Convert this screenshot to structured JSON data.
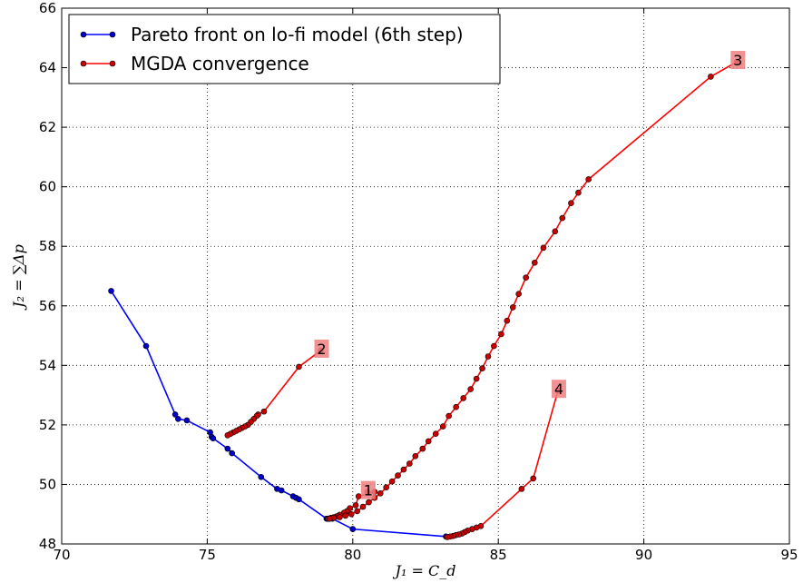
{
  "chart_data": {
    "type": "line",
    "xlabel": "J₁ = C_d",
    "ylabel": "J₂ = ∑Δp",
    "xlim": [
      70,
      95
    ],
    "ylim": [
      48,
      66
    ],
    "xticks": [
      70,
      75,
      80,
      85,
      90,
      95
    ],
    "yticks": [
      48,
      50,
      52,
      54,
      56,
      58,
      60,
      62,
      64,
      66
    ],
    "grid": true,
    "legend_position": "top-left",
    "series": [
      {
        "name": "Pareto front on lo-fi model (6th step)",
        "color": "#0000ff",
        "marker_color": "#0000cc",
        "x": [
          71.7,
          72.9,
          73.9,
          74.0,
          74.3,
          75.1,
          75.15,
          75.2,
          75.7,
          75.85,
          76.85,
          77.4,
          77.55,
          77.95,
          78.05,
          78.15,
          79.1,
          79.15,
          79.2,
          79.3,
          80.0,
          83.2
        ],
        "y": [
          56.5,
          54.65,
          52.35,
          52.2,
          52.15,
          51.75,
          51.6,
          51.55,
          51.2,
          51.05,
          50.25,
          49.85,
          49.8,
          49.6,
          49.55,
          49.5,
          48.85,
          48.85,
          48.85,
          48.85,
          48.5,
          48.25
        ]
      },
      {
        "name": "MGDA convergence",
        "color": "#ff0000",
        "marker_color": "#cc0000",
        "segments": [
          {
            "label": "1",
            "x": [
              80.5,
              80.75,
              80.2,
              80.1,
              79.9,
              79.8,
              79.7,
              79.55,
              79.45,
              79.35,
              79.25,
              79.15
            ],
            "y": [
              49.75,
              49.75,
              49.6,
              49.3,
              49.2,
              49.1,
              49.05,
              48.98,
              48.93,
              48.9,
              48.88,
              48.85
            ]
          },
          {
            "label": "2",
            "x": [
              78.9,
              78.15,
              76.95,
              76.75,
              76.7,
              76.6,
              76.5,
              76.4,
              76.3,
              76.2,
              76.1,
              76.0,
              75.9,
              75.8,
              75.7
            ],
            "y": [
              54.5,
              53.95,
              52.45,
              52.35,
              52.3,
              52.2,
              52.1,
              52.0,
              51.95,
              51.9,
              51.85,
              51.8,
              51.75,
              51.7,
              51.65
            ]
          },
          {
            "label": "3",
            "x": [
              93.2,
              92.3,
              88.1,
              87.75,
              87.5,
              87.2,
              86.95,
              86.55,
              86.25,
              85.95,
              85.7,
              85.5,
              85.3,
              85.1,
              84.85,
              84.65,
              84.45,
              84.25,
              84.05,
              83.8,
              83.55,
              83.3,
              83.1,
              82.85,
              82.6,
              82.4,
              82.15,
              81.95,
              81.75,
              81.55,
              81.35,
              81.15,
              80.95,
              80.75,
              80.55,
              80.35,
              80.15,
              79.95,
              79.75,
              79.55,
              79.35,
              79.2
            ],
            "y": [
              64.2,
              63.7,
              60.25,
              59.8,
              59.45,
              58.95,
              58.5,
              57.95,
              57.45,
              56.95,
              56.4,
              55.95,
              55.5,
              55.05,
              54.65,
              54.3,
              53.9,
              53.55,
              53.2,
              52.9,
              52.6,
              52.3,
              51.95,
              51.7,
              51.45,
              51.2,
              50.95,
              50.7,
              50.5,
              50.3,
              50.1,
              49.9,
              49.7,
              49.55,
              49.4,
              49.25,
              49.1,
              49.0,
              48.95,
              48.9,
              48.88,
              48.85
            ]
          },
          {
            "label": "4",
            "x": [
              87.05,
              86.2,
              85.8,
              84.4,
              84.25,
              84.1,
              83.95,
              83.85,
              83.75,
              83.65,
              83.55,
              83.45,
              83.35,
              83.25
            ],
            "y": [
              53.15,
              50.2,
              49.85,
              48.6,
              48.55,
              48.5,
              48.45,
              48.4,
              48.35,
              48.32,
              48.3,
              48.27,
              48.25,
              48.23
            ]
          }
        ]
      }
    ],
    "annotations": [
      "1",
      "2",
      "3",
      "4"
    ],
    "annotation_color": "#f08080"
  }
}
